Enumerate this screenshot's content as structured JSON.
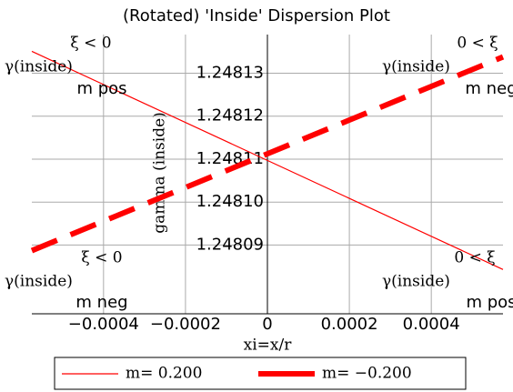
{
  "chart_data": {
    "type": "line",
    "title": "(Rotated) 'Inside' Dispersion Plot",
    "xlabel": "xi=x/r",
    "ylabel": "gamma (inside)",
    "x": [
      -0.000575,
      0.000575
    ],
    "series": [
      {
        "name": "m= 0.200",
        "color": "#ff0000",
        "values": [
          1.2481351,
          1.2480843
        ],
        "style": "solid"
      },
      {
        "name": "m= −0.200",
        "color": "#ff0000",
        "values": [
          1.2480887,
          1.2481338
        ],
        "style": "dash"
      }
    ],
    "xlim": [
      -0.000575,
      0.000575
    ],
    "xticks": [
      {
        "value": -0.0004,
        "label": "−0.0004"
      },
      {
        "value": -0.0002,
        "label": "−0.0002"
      },
      0,
      0.0002,
      0.0004
    ],
    "ylim": [
      1.248074,
      1.248139
    ],
    "yticks": [
      {
        "value": 1.24809,
        "label": "1.24809"
      },
      {
        "value": 1.2481,
        "label": "1.24810"
      },
      {
        "value": 1.24811,
        "label": "1.24811"
      },
      {
        "value": 1.24812,
        "label": "1.24812"
      },
      {
        "value": 1.24813,
        "label": "1.24813"
      }
    ],
    "grid": true,
    "annotations": [
      "ξ < 0",
      "γ(inside)",
      "m pos",
      "0 < ξ",
      "γ(inside)",
      "m neg",
      "ξ < 0",
      "γ(inside)",
      "m neg",
      "0 < ξ",
      "γ(inside)",
      "m pos"
    ]
  }
}
